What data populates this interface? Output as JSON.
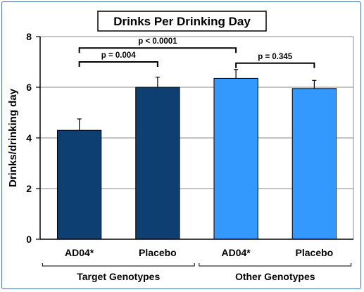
{
  "chart_data": {
    "type": "bar",
    "title": "Drinks Per Drinking Day",
    "ylabel": "Drinks/drinking day",
    "xlabel": "",
    "ylim": [
      0,
      8
    ],
    "yticks": [
      "0",
      "2",
      "4",
      "6",
      "8"
    ],
    "grid": true,
    "categories": [
      "AD04*",
      "Placebo",
      "AD04*",
      "Placebo"
    ],
    "values": [
      4.3,
      6.0,
      6.35,
      5.95
    ],
    "errors": [
      0.45,
      0.4,
      0.35,
      0.32
    ],
    "bar_colors": [
      "#0d3f73",
      "#0d3f73",
      "#3399ff",
      "#3399ff"
    ],
    "groups": [
      {
        "label": "Target Genotypes",
        "categories": [
          0,
          1
        ]
      },
      {
        "label": "Other Genotypes",
        "categories": [
          2,
          3
        ]
      }
    ],
    "annotations": [
      {
        "text": "p = 0.004",
        "from": 0,
        "to": 1,
        "level": 7.0
      },
      {
        "text": "p < 0.0001",
        "from": 0,
        "to": 2,
        "level": 7.55
      },
      {
        "text": "p = 0.345",
        "from": 2,
        "to": 3,
        "level": 6.95
      }
    ]
  }
}
